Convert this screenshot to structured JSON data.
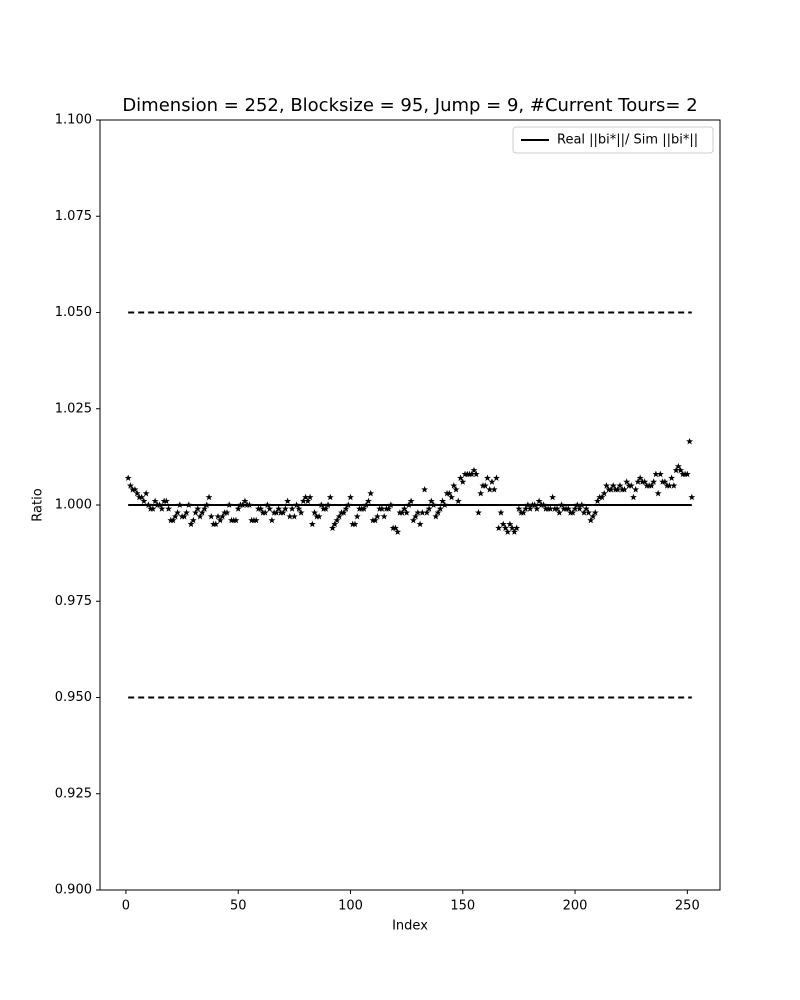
{
  "chart_data": {
    "type": "scatter",
    "title": "Dimension = 252, Blocksize = 95, Jump = 9, #Current Tours= 2",
    "xlabel": "Index",
    "ylabel": "Ratio",
    "xlim": [
      -11.55,
      264.55
    ],
    "ylim": [
      0.9,
      1.1
    ],
    "xticks": [
      0,
      50,
      100,
      150,
      200,
      250
    ],
    "yticks": [
      {
        "value": 0.9,
        "label": "0.900"
      },
      {
        "value": 0.925,
        "label": "0.925"
      },
      {
        "value": 0.95,
        "label": "0.950"
      },
      {
        "value": 0.975,
        "label": "0.975"
      },
      {
        "value": 1.0,
        "label": "1.000"
      },
      {
        "value": 1.025,
        "label": "1.025"
      },
      {
        "value": 1.05,
        "label": "1.050"
      },
      {
        "value": 1.075,
        "label": "1.075"
      },
      {
        "value": 1.1,
        "label": "1.100"
      }
    ],
    "legend": "upper right",
    "reference_lines": [
      {
        "name": "Real ||bi*||/ Sim ||bi*||",
        "y": 1.0,
        "style": "solid",
        "color": "#000000"
      },
      {
        "y": 1.05,
        "style": "dashed",
        "color": "#000000"
      },
      {
        "y": 0.95,
        "style": "dashed",
        "color": "#000000"
      }
    ],
    "x": [
      1,
      2,
      3,
      4,
      5,
      6,
      7,
      8,
      9,
      10,
      11,
      12,
      13,
      14,
      15,
      16,
      17,
      18,
      19,
      20,
      21,
      22,
      23,
      24,
      25,
      26,
      27,
      28,
      29,
      30,
      31,
      32,
      33,
      34,
      35,
      36,
      37,
      38,
      39,
      40,
      41,
      42,
      43,
      44,
      45,
      46,
      47,
      48,
      49,
      50,
      51,
      52,
      53,
      54,
      55,
      56,
      57,
      58,
      59,
      60,
      61,
      62,
      63,
      64,
      65,
      66,
      67,
      68,
      69,
      70,
      71,
      72,
      73,
      74,
      75,
      76,
      77,
      78,
      79,
      80,
      81,
      82,
      83,
      84,
      85,
      86,
      87,
      88,
      89,
      90,
      91,
      92,
      93,
      94,
      95,
      96,
      97,
      98,
      99,
      100,
      101,
      102,
      103,
      104,
      105,
      106,
      107,
      108,
      109,
      110,
      111,
      112,
      113,
      114,
      115,
      116,
      117,
      118,
      119,
      120,
      121,
      122,
      123,
      124,
      125,
      126,
      127,
      128,
      129,
      130,
      131,
      132,
      133,
      134,
      135,
      136,
      137,
      138,
      139,
      140,
      141,
      142,
      143,
      144,
      145,
      146,
      147,
      148,
      149,
      150,
      151,
      152,
      153,
      154,
      155,
      156,
      157,
      158,
      159,
      160,
      161,
      162,
      163,
      164,
      165,
      166,
      167,
      168,
      169,
      170,
      171,
      172,
      173,
      174,
      175,
      176,
      177,
      178,
      179,
      180,
      181,
      182,
      183,
      184,
      185,
      186,
      187,
      188,
      189,
      190,
      191,
      192,
      193,
      194,
      195,
      196,
      197,
      198,
      199,
      200,
      201,
      202,
      203,
      204,
      205,
      206,
      207,
      208,
      209,
      210,
      211,
      212,
      213,
      214,
      215,
      216,
      217,
      218,
      219,
      220,
      221,
      222,
      223,
      224,
      225,
      226,
      227,
      228,
      229,
      230,
      231,
      232,
      233,
      234,
      235,
      236,
      237,
      238,
      239,
      240,
      241,
      242,
      243,
      244,
      245,
      246,
      247,
      248,
      249,
      250,
      251,
      252
    ],
    "points": {
      "color": "#000000",
      "marker": "star",
      "values": [
        1.007,
        1.005,
        1.004,
        1.004,
        1.003,
        1.002,
        1.002,
        1.001,
        1.003,
        1.0,
        0.999,
        0.999,
        1.001,
        1.0,
        1.0,
        0.999,
        1.001,
        1.001,
        0.999,
        0.996,
        0.996,
        0.997,
        0.998,
        1.0,
        0.997,
        0.997,
        0.998,
        1.0,
        0.995,
        0.996,
        0.998,
        0.999,
        0.997,
        0.998,
        0.999,
        1.0,
        1.002,
        0.997,
        0.995,
        0.995,
        0.997,
        0.996,
        0.997,
        0.998,
        0.998,
        1.0,
        0.996,
        0.996,
        0.996,
        0.999,
        1.0,
        1.0,
        1.001,
        1.0,
        1.0,
        0.996,
        0.996,
        0.996,
        0.999,
        0.999,
        0.998,
        0.998,
        1.0,
        0.999,
        0.996,
        0.998,
        0.998,
        0.999,
        0.998,
        0.998,
        0.999,
        1.001,
        0.997,
        0.999,
        0.997,
        1.0,
        0.999,
        0.998,
        1.001,
        1.002,
        1.001,
        1.002,
        0.995,
        0.998,
        0.997,
        0.997,
        1.0,
        0.999,
        0.999,
        1.0,
        1.002,
        0.994,
        0.995,
        0.996,
        0.997,
        0.998,
        0.998,
        0.999,
        1.0,
        1.002,
        0.995,
        0.995,
        0.997,
        0.999,
        0.999,
        0.999,
        1.0,
        1.001,
        1.003,
        0.996,
        0.996,
        0.997,
        0.999,
        0.999,
        0.997,
        0.999,
        0.999,
        1.0,
        0.994,
        0.994,
        0.993,
        0.998,
        0.998,
        0.999,
        0.998,
        1.0,
        1.001,
        0.996,
        0.997,
        0.998,
        0.995,
        0.998,
        1.004,
        0.998,
        0.999,
        1.001,
        1.0,
        0.997,
        0.998,
        0.999,
        1.001,
        1.0,
        1.003,
        1.003,
        1.002,
        1.005,
        1.004,
        1.001,
        1.007,
        1.006,
        1.008,
        1.008,
        1.008,
        1.008,
        1.009,
        1.008,
        0.998,
        1.003,
        1.005,
        1.005,
        1.007,
        1.004,
        1.006,
        1.004,
        1.007,
        0.994,
        0.998,
        0.995,
        0.994,
        0.993,
        0.995,
        0.994,
        0.993,
        0.994,
        0.999,
        0.998,
        0.998,
        0.999,
        1.0,
        0.999,
        1.0,
        1.0,
        0.999,
        1.001,
        1.0,
        1.0,
        0.999,
        0.999,
        0.999,
        1.002,
        0.999,
        0.999,
        0.998,
        1.0,
        0.999,
        0.999,
        0.999,
        0.998,
        0.998,
        0.999,
        1.0,
        0.999,
        1.0,
        0.998,
        0.999,
        0.998,
        0.996,
        0.997,
        0.998,
        1.001,
        1.002,
        1.002,
        1.003,
        1.005,
        1.004,
        1.004,
        1.005,
        1.004,
        1.004,
        1.005,
        1.004,
        1.004,
        1.006,
        1.005,
        1.005,
        1.002,
        1.004,
        1.006,
        1.007,
        1.006,
        1.006,
        1.005,
        1.005,
        1.005,
        1.006,
        1.008,
        1.003,
        1.008,
        1.006,
        1.006,
        1.005,
        1.005,
        1.007,
        1.005,
        1.009,
        1.01,
        1.009,
        1.008,
        1.008,
        1.008,
        1.0165,
        1.002
      ]
    }
  }
}
